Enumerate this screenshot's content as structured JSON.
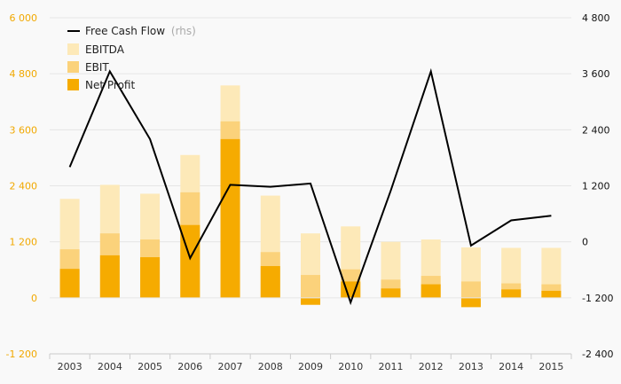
{
  "chart_data": {
    "type": "bar",
    "title": "",
    "xlabel": "",
    "ylabel": "",
    "categories": [
      "2003",
      "2004",
      "2005",
      "2006",
      "2007",
      "2008",
      "2009",
      "2010",
      "2011",
      "2012",
      "2013",
      "2014",
      "2015"
    ],
    "ylim_left": [
      -1200,
      6000
    ],
    "yticks_left": [
      -1200,
      0,
      1200,
      2400,
      3600,
      4800,
      6000
    ],
    "ytick_labels_left": [
      "-1 200",
      "0",
      "1 200",
      "2 400",
      "3 600",
      "4 800",
      "6 000"
    ],
    "ylim_right": [
      -2400,
      4800
    ],
    "yticks_right": [
      -2400,
      -1200,
      0,
      1200,
      2400,
      3600,
      4800
    ],
    "ytick_labels_right": [
      "-2 400",
      "-1 200",
      "0",
      "1 200",
      "2 400",
      "3 600",
      "4 800"
    ],
    "grid": "horizontal",
    "legend_position": "top-left",
    "series": [
      {
        "name": "EBITDA",
        "kind": "bar",
        "color": "#fde9b8",
        "values": [
          2120,
          2420,
          2230,
          3060,
          4550,
          2190,
          1380,
          1530,
          1200,
          1250,
          1080,
          1070,
          1070
        ]
      },
      {
        "name": "EBIT",
        "kind": "bar",
        "color": "#fbd27b",
        "values": [
          1040,
          1380,
          1250,
          2260,
          3780,
          980,
          490,
          610,
          390,
          470,
          350,
          310,
          290
        ]
      },
      {
        "name": "Net Profit",
        "kind": "bar",
        "color": "#f6ab00",
        "values": [
          620,
          910,
          870,
          1560,
          3400,
          680,
          -150,
          350,
          200,
          290,
          -200,
          180,
          150
        ]
      },
      {
        "name": "Free Cash Flow",
        "suffix": "(rhs)",
        "kind": "line",
        "axis": "right",
        "color": "#000000",
        "values": [
          1600,
          3650,
          2200,
          -350,
          1220,
          1180,
          1250,
          -1300,
          1100,
          3650,
          -80,
          460,
          560
        ]
      }
    ]
  }
}
